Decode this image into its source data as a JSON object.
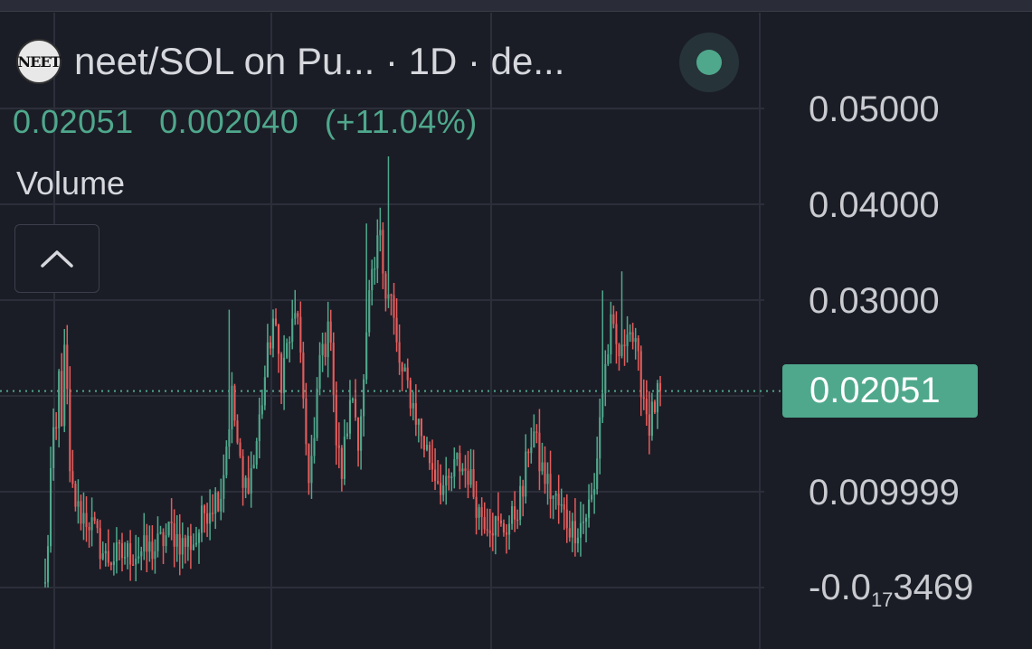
{
  "header": {
    "logo_text": "NEET",
    "title": "neet/SOL on Pu...  · 1D · de...",
    "last_price": "0.02051",
    "change": "0.002040",
    "change_pct": "(+11.04%)",
    "volume_label": "Volume",
    "collapse_icon": "chevron-up-icon"
  },
  "colors": {
    "background": "#1b1d26",
    "up": "#4fa88c",
    "down": "#e45c5c",
    "grid": "#2c2f3a",
    "price_line": "#4fa88c",
    "text": "#d6d8de"
  },
  "price_axis": {
    "ticks": [
      {
        "label": "0.05000",
        "value": 0.05
      },
      {
        "label": "0.04000",
        "value": 0.04
      },
      {
        "label": "0.03000",
        "value": 0.03
      },
      {
        "label": "0.009999",
        "value": 0.01
      },
      {
        "label_main": "-0.0",
        "label_sub": "17",
        "label_tail": "3469",
        "value": 0.0
      }
    ],
    "current_price_label": "0.02051",
    "current_price": 0.02051
  },
  "chart_data": {
    "type": "candlestick",
    "interval": "1D",
    "ylim": [
      0.0,
      0.05
    ],
    "grid": true,
    "anchors": [
      [
        0,
        0.0
      ],
      [
        1,
        0.005
      ],
      [
        2,
        0.012
      ],
      [
        3,
        0.015
      ],
      [
        4,
        0.016
      ],
      [
        5,
        0.022
      ],
      [
        6,
        0.018
      ],
      [
        7,
        0.024
      ],
      [
        8,
        0.02
      ],
      [
        9,
        0.011
      ],
      [
        12,
        0.008
      ],
      [
        16,
        0.007
      ],
      [
        22,
        0.003
      ],
      [
        30,
        0.0035
      ],
      [
        40,
        0.004
      ],
      [
        46,
        0.006
      ],
      [
        50,
        0.0045
      ],
      [
        55,
        0.005
      ],
      [
        58,
        0.008
      ],
      [
        64,
        0.01
      ],
      [
        68,
        0.02
      ],
      [
        72,
        0.01
      ],
      [
        76,
        0.013
      ],
      [
        80,
        0.022
      ],
      [
        83,
        0.028
      ],
      [
        86,
        0.022
      ],
      [
        88,
        0.025
      ],
      [
        92,
        0.029
      ],
      [
        94,
        0.018
      ],
      [
        96,
        0.012
      ],
      [
        98,
        0.015
      ],
      [
        100,
        0.024
      ],
      [
        104,
        0.027
      ],
      [
        106,
        0.015
      ],
      [
        108,
        0.012
      ],
      [
        110,
        0.017
      ],
      [
        112,
        0.02
      ],
      [
        114,
        0.016
      ],
      [
        116,
        0.021
      ],
      [
        118,
        0.03
      ],
      [
        120,
        0.033
      ],
      [
        122,
        0.038
      ],
      [
        124,
        0.031
      ],
      [
        126,
        0.03
      ],
      [
        128,
        0.025
      ],
      [
        130,
        0.022
      ],
      [
        132,
        0.021
      ],
      [
        135,
        0.018
      ],
      [
        138,
        0.015
      ],
      [
        142,
        0.012
      ],
      [
        146,
        0.01
      ],
      [
        150,
        0.013
      ],
      [
        154,
        0.012
      ],
      [
        158,
        0.008
      ],
      [
        162,
        0.007
      ],
      [
        166,
        0.006
      ],
      [
        170,
        0.007
      ],
      [
        174,
        0.01
      ],
      [
        176,
        0.015
      ],
      [
        178,
        0.016
      ],
      [
        180,
        0.013
      ],
      [
        184,
        0.01
      ],
      [
        188,
        0.008
      ],
      [
        192,
        0.006
      ],
      [
        196,
        0.007
      ],
      [
        200,
        0.01
      ],
      [
        202,
        0.018
      ],
      [
        204,
        0.023
      ],
      [
        206,
        0.027
      ],
      [
        208,
        0.025
      ],
      [
        210,
        0.024
      ],
      [
        212,
        0.028
      ],
      [
        214,
        0.026
      ],
      [
        216,
        0.023
      ],
      [
        218,
        0.02
      ],
      [
        220,
        0.017
      ],
      [
        222,
        0.019
      ],
      [
        224,
        0.0205
      ]
    ],
    "spikes": [
      {
        "day": 67,
        "high": 0.029
      },
      {
        "day": 117,
        "high": 0.038
      },
      {
        "day": 125,
        "high": 0.045
      },
      {
        "day": 203,
        "high": 0.031
      },
      {
        "day": 210,
        "high": 0.033
      }
    ]
  }
}
